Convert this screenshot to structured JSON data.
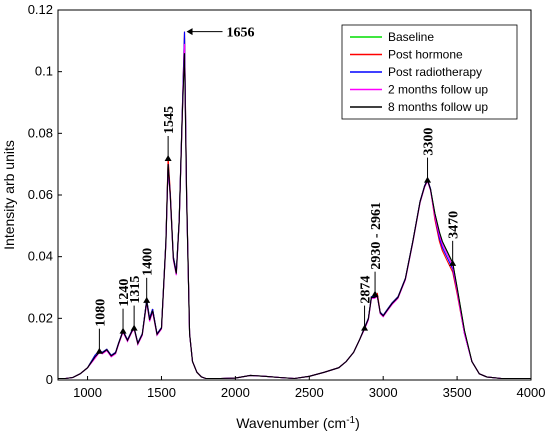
{
  "chart_data": {
    "type": "line",
    "xlabel_main": "Wavenumber (cm",
    "xlabel_sup": "-1",
    "xlabel_end": ")",
    "ylabel": "Intensity arb units",
    "xlim": [
      800,
      4000
    ],
    "ylim": [
      0,
      0.12
    ],
    "xticks": [
      "1000",
      "1500",
      "2000",
      "2500",
      "3000",
      "3500",
      "4000"
    ],
    "yticks": [
      "0",
      "0.02",
      "0.04",
      "0.06",
      "0.08",
      "0.1",
      "0.12"
    ],
    "legend_position": "top-right",
    "x": [
      800,
      850,
      900,
      950,
      1000,
      1050,
      1080,
      1100,
      1130,
      1160,
      1190,
      1210,
      1240,
      1270,
      1300,
      1315,
      1340,
      1370,
      1400,
      1420,
      1440,
      1470,
      1500,
      1530,
      1545,
      1560,
      1580,
      1600,
      1620,
      1640,
      1656,
      1670,
      1690,
      1710,
      1740,
      1770,
      1800,
      1850,
      1900,
      2000,
      2100,
      2200,
      2300,
      2400,
      2500,
      2600,
      2700,
      2750,
      2800,
      2840,
      2874,
      2900,
      2920,
      2940,
      2961,
      2980,
      3000,
      3030,
      3060,
      3100,
      3150,
      3200,
      3250,
      3280,
      3300,
      3320,
      3350,
      3380,
      3400,
      3430,
      3450,
      3470,
      3500,
      3550,
      3600,
      3650,
      3700,
      3800,
      3900,
      4000
    ],
    "series": [
      {
        "name": "Baseline",
        "color": "#00dd00",
        "values": [
          0.0005,
          0.0005,
          0.0008,
          0.002,
          0.004,
          0.008,
          0.0095,
          0.009,
          0.01,
          0.008,
          0.009,
          0.012,
          0.016,
          0.013,
          0.016,
          0.017,
          0.012,
          0.015,
          0.026,
          0.02,
          0.023,
          0.015,
          0.017,
          0.045,
          0.071,
          0.06,
          0.04,
          0.035,
          0.052,
          0.085,
          0.111,
          0.06,
          0.015,
          0.006,
          0.0025,
          0.001,
          0.0005,
          0.0005,
          0.0005,
          0.0006,
          0.0015,
          0.0012,
          0.0008,
          0.0005,
          0.0012,
          0.0025,
          0.004,
          0.006,
          0.009,
          0.013,
          0.017,
          0.02,
          0.027,
          0.027,
          0.027,
          0.022,
          0.021,
          0.023,
          0.025,
          0.027,
          0.033,
          0.045,
          0.058,
          0.063,
          0.065,
          0.062,
          0.054,
          0.048,
          0.045,
          0.042,
          0.04,
          0.038,
          0.03,
          0.016,
          0.006,
          0.002,
          0.001,
          0.0005,
          0.0005,
          0.0005
        ]
      },
      {
        "name": "Post hormone",
        "color": "#ff0000",
        "values": [
          0.0005,
          0.0005,
          0.0008,
          0.002,
          0.004,
          0.008,
          0.0095,
          0.009,
          0.01,
          0.008,
          0.009,
          0.012,
          0.016,
          0.013,
          0.016,
          0.017,
          0.012,
          0.015,
          0.026,
          0.02,
          0.023,
          0.015,
          0.017,
          0.045,
          0.072,
          0.061,
          0.04,
          0.035,
          0.052,
          0.086,
          0.113,
          0.061,
          0.015,
          0.006,
          0.0025,
          0.001,
          0.0005,
          0.0005,
          0.0005,
          0.0006,
          0.0015,
          0.0012,
          0.0008,
          0.0005,
          0.0012,
          0.0025,
          0.004,
          0.006,
          0.009,
          0.013,
          0.017,
          0.02,
          0.027,
          0.027,
          0.028,
          0.022,
          0.021,
          0.023,
          0.025,
          0.027,
          0.033,
          0.045,
          0.058,
          0.063,
          0.065,
          0.062,
          0.052,
          0.045,
          0.042,
          0.039,
          0.037,
          0.035,
          0.028,
          0.015,
          0.006,
          0.002,
          0.001,
          0.0005,
          0.0005,
          0.0005
        ]
      },
      {
        "name": "Post radiotherapy",
        "color": "#0000ff",
        "values": [
          0.0005,
          0.0005,
          0.0008,
          0.002,
          0.004,
          0.008,
          0.0095,
          0.009,
          0.01,
          0.008,
          0.009,
          0.012,
          0.016,
          0.013,
          0.016,
          0.017,
          0.012,
          0.015,
          0.026,
          0.02,
          0.023,
          0.015,
          0.017,
          0.045,
          0.07,
          0.06,
          0.04,
          0.035,
          0.052,
          0.086,
          0.113,
          0.06,
          0.015,
          0.006,
          0.0025,
          0.001,
          0.0005,
          0.0005,
          0.0005,
          0.0006,
          0.0015,
          0.0012,
          0.0008,
          0.0005,
          0.0012,
          0.0025,
          0.004,
          0.006,
          0.009,
          0.013,
          0.017,
          0.02,
          0.027,
          0.027,
          0.027,
          0.022,
          0.021,
          0.023,
          0.025,
          0.027,
          0.033,
          0.045,
          0.058,
          0.063,
          0.065,
          0.062,
          0.053,
          0.046,
          0.043,
          0.04,
          0.038,
          0.036,
          0.029,
          0.015,
          0.006,
          0.002,
          0.001,
          0.0005,
          0.0005,
          0.0005
        ]
      },
      {
        "name": "2 months follow up",
        "color": "#ff00ff",
        "values": [
          0.0005,
          0.0005,
          0.0008,
          0.002,
          0.004,
          0.007,
          0.009,
          0.0085,
          0.0095,
          0.0075,
          0.0085,
          0.0115,
          0.0155,
          0.0125,
          0.0155,
          0.0165,
          0.0115,
          0.0145,
          0.025,
          0.019,
          0.022,
          0.0145,
          0.0165,
          0.044,
          0.069,
          0.059,
          0.039,
          0.034,
          0.051,
          0.084,
          0.109,
          0.059,
          0.015,
          0.006,
          0.0025,
          0.001,
          0.0005,
          0.0005,
          0.0005,
          0.0006,
          0.0015,
          0.0012,
          0.0008,
          0.0005,
          0.0012,
          0.0025,
          0.004,
          0.006,
          0.009,
          0.013,
          0.0165,
          0.0195,
          0.0265,
          0.0265,
          0.027,
          0.0215,
          0.0205,
          0.0225,
          0.0245,
          0.0265,
          0.0325,
          0.0445,
          0.0575,
          0.0625,
          0.0645,
          0.0615,
          0.053,
          0.047,
          0.044,
          0.041,
          0.039,
          0.037,
          0.029,
          0.015,
          0.006,
          0.002,
          0.001,
          0.0005,
          0.0005,
          0.0005
        ]
      },
      {
        "name": "8 months follow up",
        "color": "#000000",
        "values": [
          0.0005,
          0.0005,
          0.0008,
          0.002,
          0.004,
          0.0075,
          0.009,
          0.0088,
          0.0098,
          0.0078,
          0.0088,
          0.0118,
          0.0158,
          0.0128,
          0.0158,
          0.0168,
          0.0118,
          0.0148,
          0.0255,
          0.0195,
          0.0225,
          0.0148,
          0.0168,
          0.0445,
          0.07,
          0.0595,
          0.0395,
          0.0345,
          0.0515,
          0.085,
          0.106,
          0.0595,
          0.015,
          0.006,
          0.0025,
          0.001,
          0.0005,
          0.0005,
          0.0005,
          0.0006,
          0.0015,
          0.0012,
          0.0008,
          0.0005,
          0.0012,
          0.0025,
          0.004,
          0.006,
          0.009,
          0.013,
          0.0168,
          0.0198,
          0.0268,
          0.0268,
          0.0272,
          0.0218,
          0.0208,
          0.0228,
          0.0248,
          0.0268,
          0.0328,
          0.0448,
          0.0578,
          0.0628,
          0.0648,
          0.0618,
          0.054,
          0.048,
          0.045,
          0.042,
          0.04,
          0.038,
          0.03,
          0.016,
          0.006,
          0.002,
          0.001,
          0.0005,
          0.0005,
          0.0005
        ]
      }
    ],
    "annotations": [
      {
        "text": "1080",
        "x": 1080,
        "y": 0.0095,
        "vertical": true
      },
      {
        "text": "1240",
        "x": 1240,
        "y": 0.016,
        "vertical": true
      },
      {
        "text": "1315",
        "x": 1315,
        "y": 0.017,
        "vertical": true
      },
      {
        "text": "1400",
        "x": 1400,
        "y": 0.026,
        "vertical": true
      },
      {
        "text": "1545",
        "x": 1545,
        "y": 0.072,
        "vertical": true
      },
      {
        "text": "1656",
        "x": 1656,
        "y": 0.113,
        "vertical": false
      },
      {
        "text": "2874",
        "x": 2874,
        "y": 0.017,
        "vertical": true
      },
      {
        "text": "2930 - 2961",
        "x": 2945,
        "y": 0.028,
        "vertical": true
      },
      {
        "text": "3300",
        "x": 3300,
        "y": 0.065,
        "vertical": true
      },
      {
        "text": "3470",
        "x": 3470,
        "y": 0.038,
        "vertical": true
      }
    ]
  }
}
